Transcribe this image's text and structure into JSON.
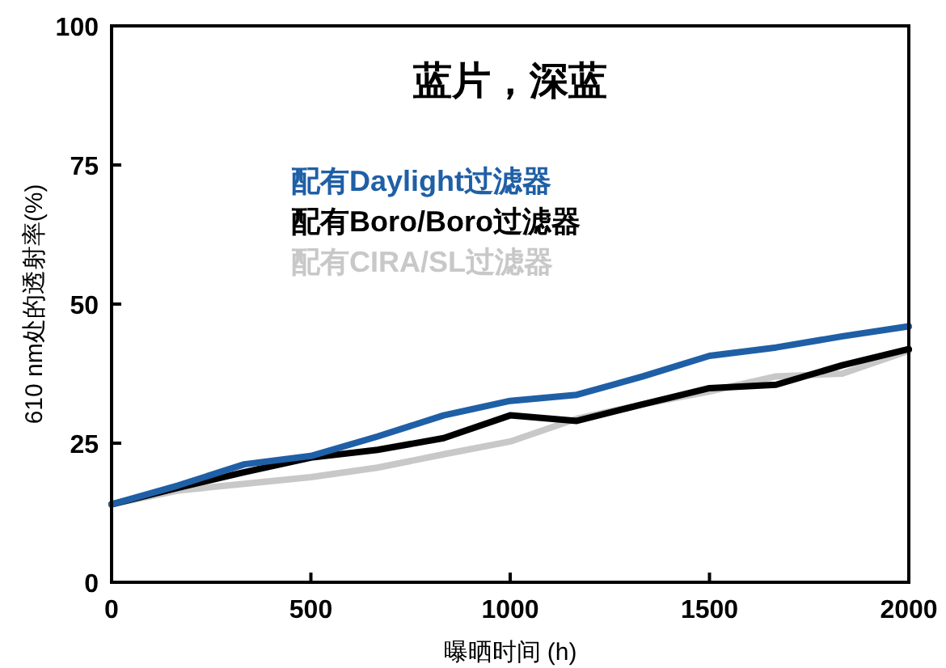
{
  "chart_data": {
    "type": "line",
    "title": "蓝片，深蓝",
    "xlabel": "曝晒时间 (h)",
    "ylabel": "610 nm处的透射率(%)",
    "x": [
      0,
      167,
      333,
      500,
      667,
      833,
      1000,
      1167,
      1333,
      1500,
      1667,
      1833,
      2000
    ],
    "series": [
      {
        "name": "配有Daylight过滤器",
        "color": "#1f5fa6",
        "values": [
          14,
          17.4,
          21.2,
          22.7,
          26.2,
          30,
          32.6,
          33.7,
          37,
          40.7,
          42.2,
          44.2,
          46
        ]
      },
      {
        "name": "配有Boro/Boro过滤器",
        "color": "#000000",
        "values": [
          14,
          17,
          19.8,
          22.4,
          23.8,
          25.9,
          30,
          29,
          32,
          34.9,
          35.5,
          39,
          41.9
        ]
      },
      {
        "name": "配有CIRA/SL过滤器",
        "color": "#c8c8c8",
        "values": [
          14,
          16.5,
          17.7,
          18.9,
          20.6,
          23,
          25.3,
          29.4,
          32,
          34.3,
          37,
          37.5,
          41.6
        ]
      }
    ],
    "xlim": [
      0,
      2000
    ],
    "xticks": [
      0,
      500,
      1000,
      1500,
      2000
    ],
    "ylim": [
      0,
      100
    ],
    "yticks": [
      0,
      25,
      50,
      75,
      100
    ],
    "grid": false,
    "legend": "top",
    "marker": "none",
    "line_style": "solid"
  }
}
